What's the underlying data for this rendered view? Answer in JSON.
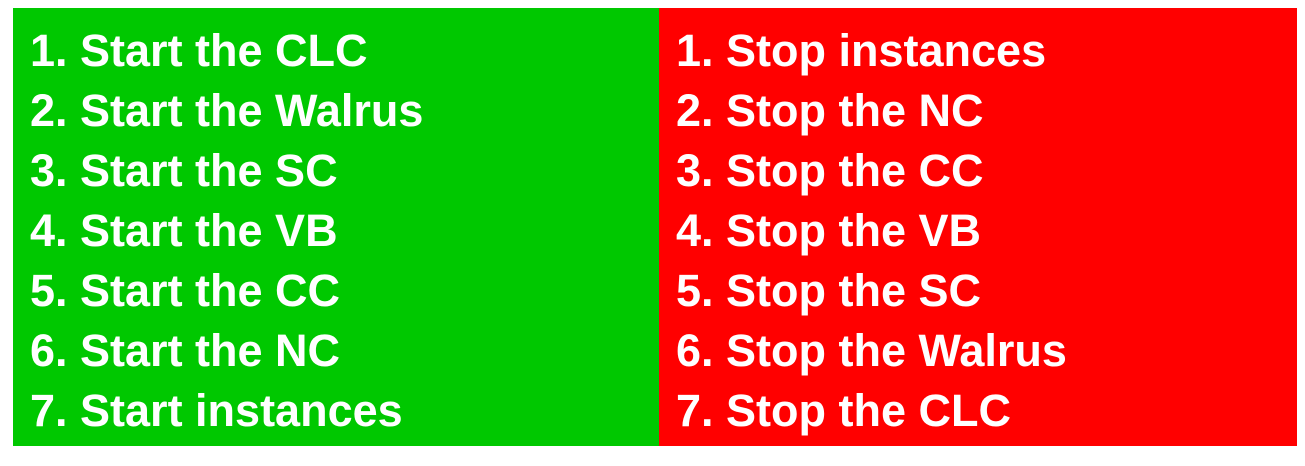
{
  "colors": {
    "start_background": "#00c800",
    "stop_background": "#ff0000",
    "text": "#ffffff"
  },
  "start_steps": [
    "1. Start the CLC",
    "2. Start the Walrus",
    "3. Start the SC",
    "4. Start the VB",
    "5. Start the CC",
    "6. Start the NC",
    "7. Start instances"
  ],
  "stop_steps": [
    "1. Stop instances",
    "2. Stop the NC",
    "3. Stop the CC",
    "4. Stop the VB",
    "5. Stop the SC",
    "6. Stop the Walrus",
    "7. Stop the CLC"
  ]
}
